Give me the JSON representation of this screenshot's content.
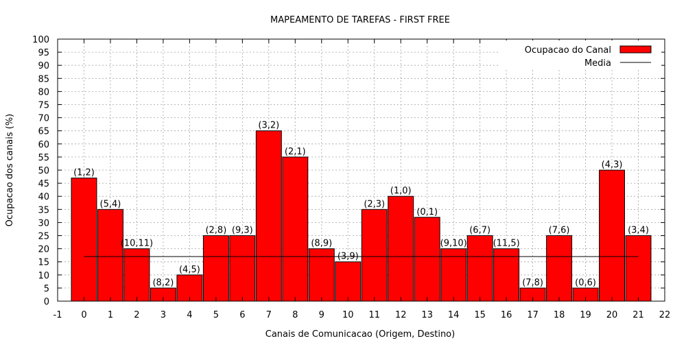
{
  "chart_data": {
    "type": "bar",
    "title": "MAPEAMENTO DE TAREFAS - FIRST FREE",
    "xlabel": "Canais de Comunicacao (Origem, Destino)",
    "ylabel": "Ocupacao dos canais (%)",
    "xlim": [
      -1,
      22
    ],
    "ylim": [
      0,
      100
    ],
    "x_ticks": [
      -1,
      0,
      1,
      2,
      3,
      4,
      5,
      6,
      7,
      8,
      9,
      10,
      11,
      12,
      13,
      14,
      15,
      16,
      17,
      18,
      19,
      20,
      21,
      22
    ],
    "y_ticks": [
      0,
      5,
      10,
      15,
      20,
      25,
      30,
      35,
      40,
      45,
      50,
      55,
      60,
      65,
      70,
      75,
      80,
      85,
      90,
      95,
      100
    ],
    "grid": true,
    "legend_position": "top-right",
    "bar_color": "#ff0000",
    "x": [
      0,
      1,
      2,
      3,
      4,
      5,
      6,
      7,
      8,
      9,
      10,
      11,
      12,
      13,
      14,
      15,
      16,
      17,
      18,
      19,
      20,
      21
    ],
    "labels": [
      "(1,2)",
      "(5,4)",
      "(10,11)",
      "(8,2)",
      "(4,5)",
      "(2,8)",
      "(9,3)",
      "(3,2)",
      "(2,1)",
      "(8,9)",
      "(3,9)",
      "(2,3)",
      "(1,0)",
      "(0,1)",
      "(9,10)",
      "(6,7)",
      "(11,5)",
      "(7,8)",
      "(7,6)",
      "(0,6)",
      "(4,3)",
      "(3,4)"
    ],
    "series": [
      {
        "name": "Ocupacao do Canal",
        "values": [
          47,
          35,
          20,
          5,
          10,
          25,
          25,
          65,
          55,
          20,
          15,
          35,
          40,
          32,
          20,
          25,
          20,
          5,
          25,
          5,
          50,
          25
        ]
      }
    ],
    "mean_line": {
      "name": "Media",
      "value": 17,
      "x_range": [
        0,
        21
      ]
    }
  }
}
